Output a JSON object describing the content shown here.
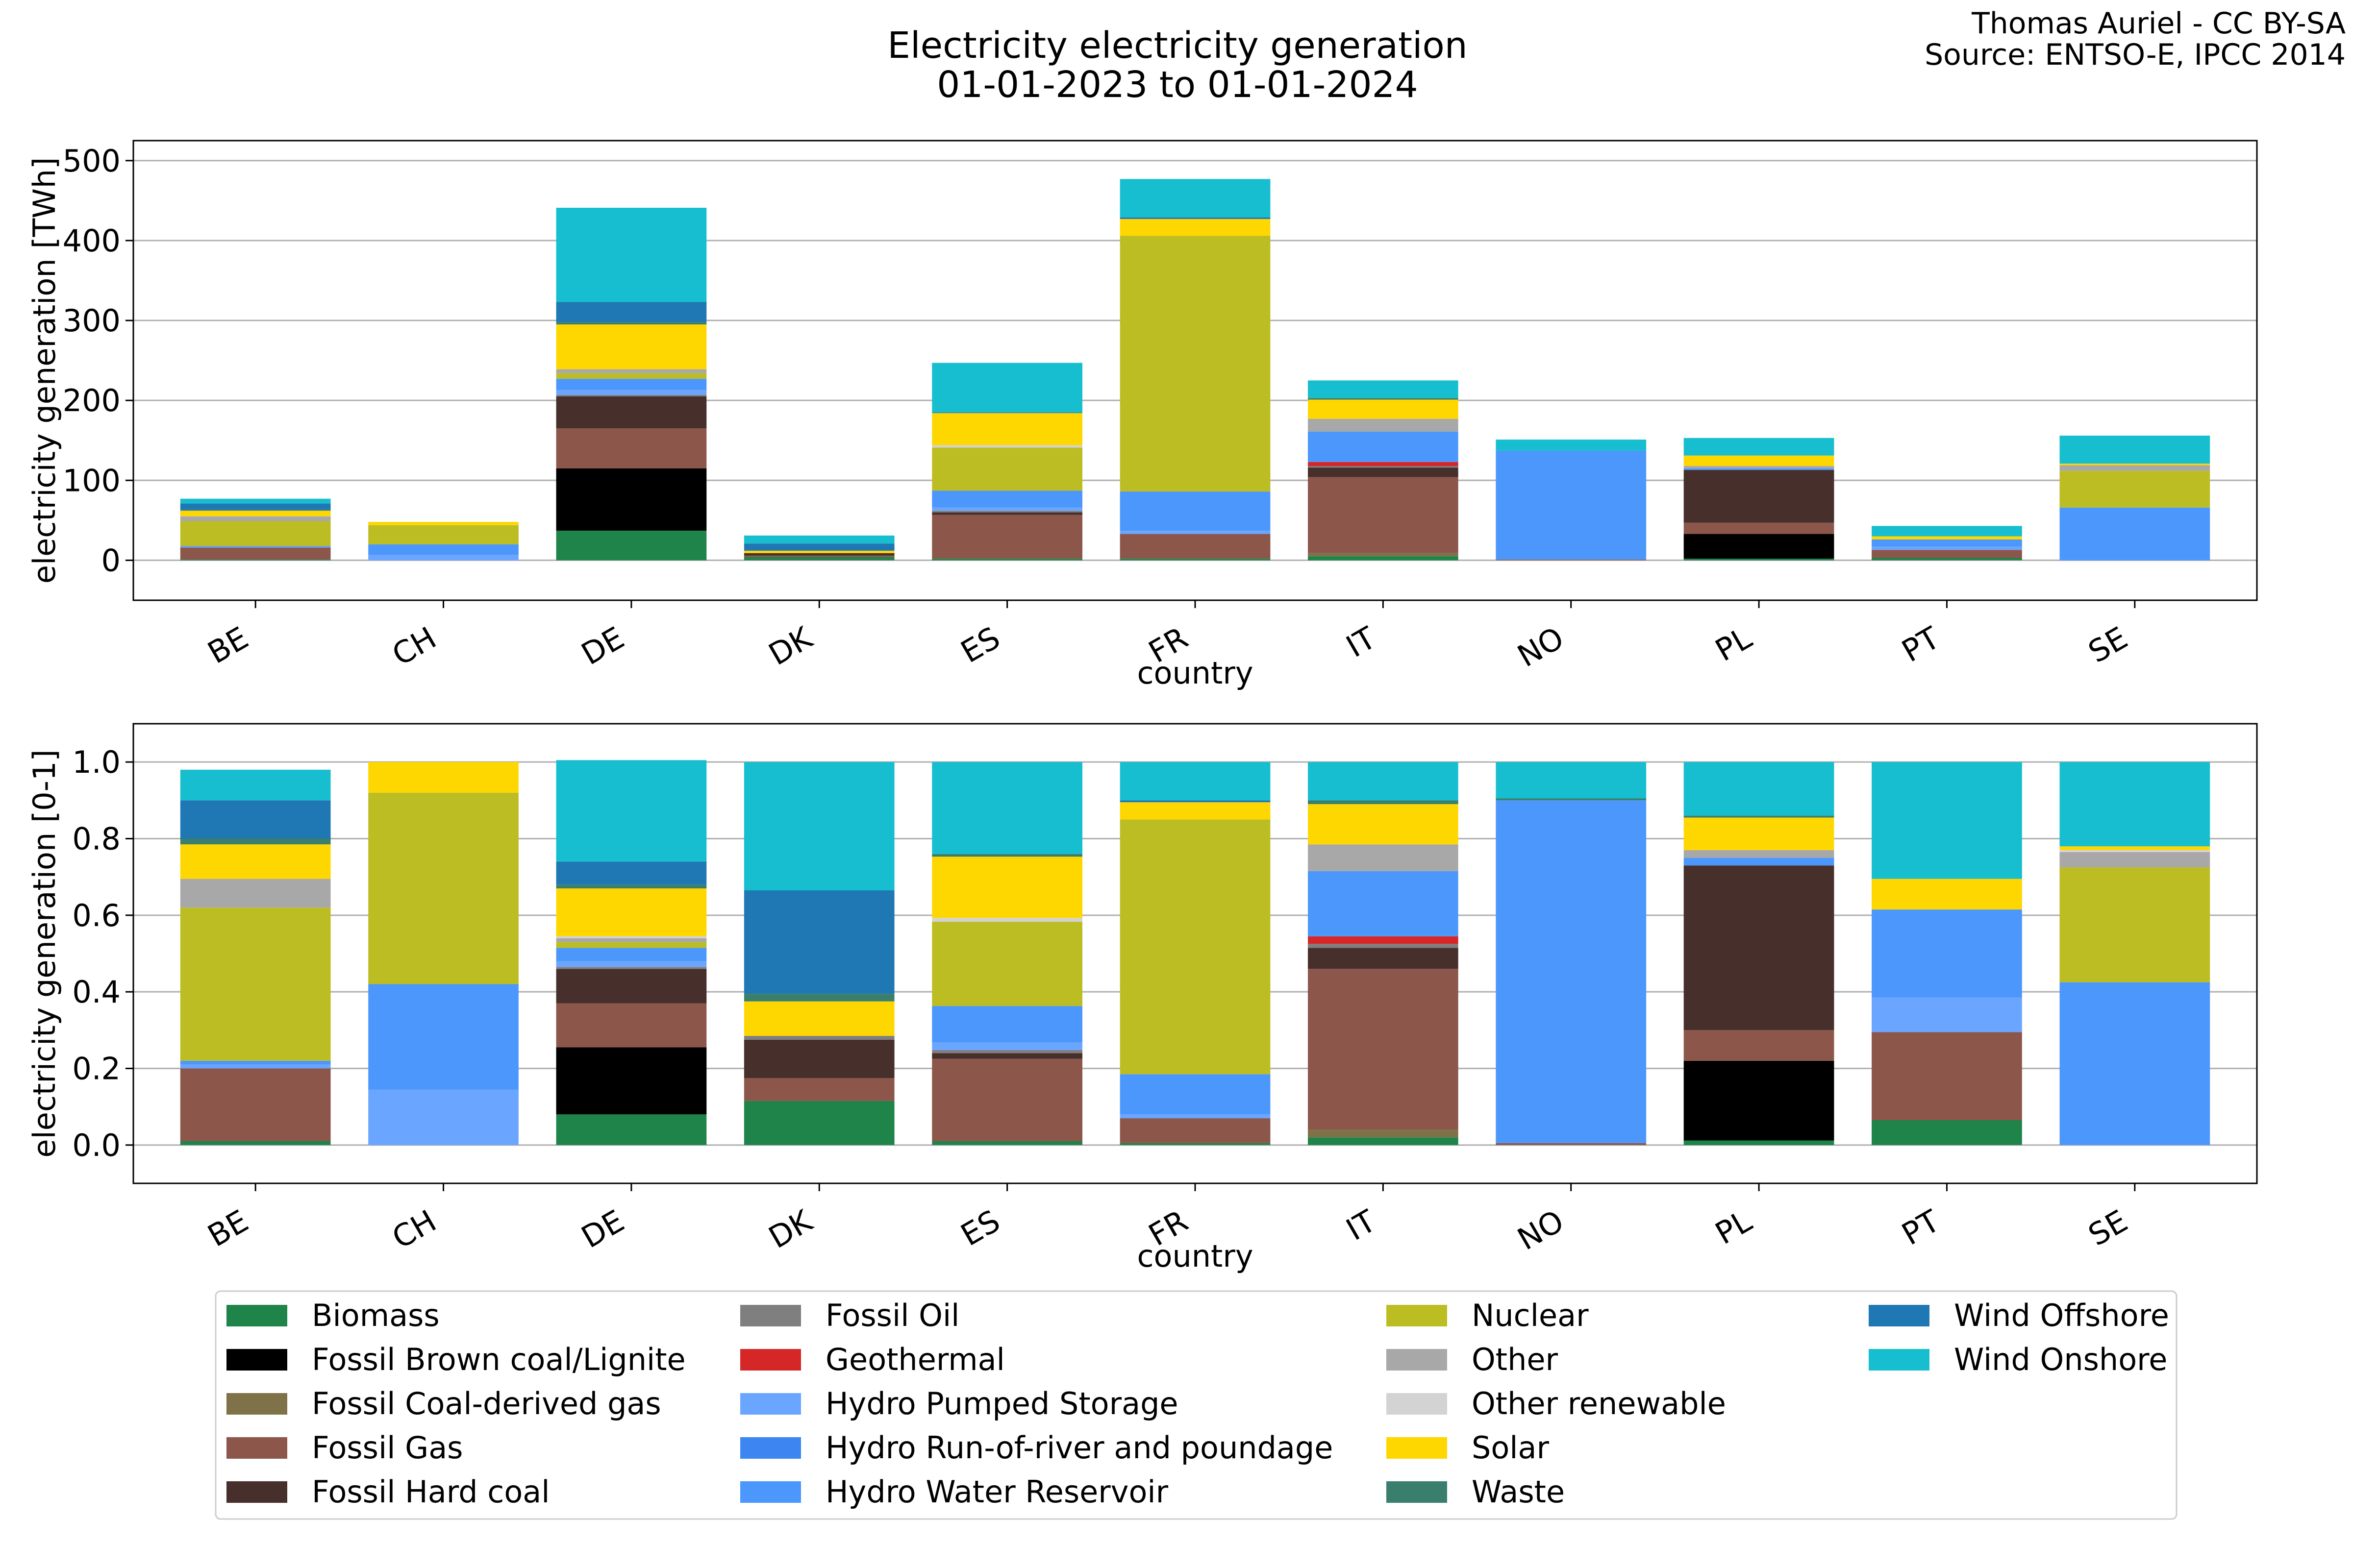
{
  "title_line1": "Electricity electricity generation",
  "title_line2": "01-01-2023 to 01-01-2024",
  "credit_line1": "Thomas Auriel - CC BY-SA",
  "credit_line2": "Source: ENTSO-E, IPCC 2014",
  "chart_data": [
    {
      "type": "bar",
      "stacked": true,
      "xlabel": "country",
      "ylabel": "electricity generation [TWh]",
      "ylim": [
        -50,
        525
      ],
      "yticks": [
        0,
        100,
        200,
        300,
        400,
        500
      ],
      "grid": true,
      "categories": [
        "BE",
        "CH",
        "DE",
        "DK",
        "ES",
        "FR",
        "IT",
        "NO",
        "PL",
        "PT",
        "SE"
      ],
      "series": [
        {
          "name": "Biomass",
          "values": [
            1,
            0,
            37,
            4,
            2,
            2,
            5,
            0,
            2,
            3,
            0
          ]
        },
        {
          "name": "Fossil Brown coal/Lignite",
          "values": [
            0,
            0,
            78,
            0,
            0,
            0,
            0,
            0,
            31,
            0,
            0
          ]
        },
        {
          "name": "Fossil Coal-derived gas",
          "values": [
            0,
            0,
            0,
            0,
            0,
            0,
            4,
            0,
            0,
            0,
            0
          ]
        },
        {
          "name": "Fossil Gas",
          "values": [
            15,
            0,
            50,
            2,
            55,
            31,
            95,
            1,
            14,
            10,
            0
          ]
        },
        {
          "name": "Fossil Hard coal",
          "values": [
            0,
            0,
            40,
            3,
            3,
            0,
            12,
            0,
            66,
            0,
            0
          ]
        },
        {
          "name": "Fossil Oil",
          "values": [
            0,
            0,
            2,
            0,
            2,
            0,
            2,
            0,
            0,
            0,
            0
          ]
        },
        {
          "name": "Geothermal",
          "values": [
            0,
            0,
            0,
            0,
            0,
            0,
            5,
            0,
            0,
            0,
            0
          ]
        },
        {
          "name": "Hydro Pumped Storage",
          "values": [
            1,
            7,
            6,
            0,
            4,
            4,
            0,
            0,
            0,
            4,
            0
          ]
        },
        {
          "name": "Hydro Run-of-river and poundage",
          "values": [
            0,
            0,
            0,
            0,
            0,
            0,
            0,
            0,
            0,
            0,
            0
          ]
        },
        {
          "name": "Hydro Water Reservoir",
          "values": [
            1,
            13,
            14,
            0,
            21,
            49,
            38,
            136,
            2,
            9,
            66
          ]
        },
        {
          "name": "Nuclear",
          "values": [
            31,
            24,
            7,
            0,
            54,
            320,
            0,
            0,
            0,
            0,
            46
          ]
        },
        {
          "name": "Other",
          "values": [
            6,
            0,
            5,
            0,
            0,
            0,
            16,
            0,
            3,
            0,
            7
          ]
        },
        {
          "name": "Other renewable",
          "values": [
            0,
            0,
            0,
            0,
            3,
            0,
            0,
            0,
            0,
            0,
            0
          ]
        },
        {
          "name": "Solar",
          "values": [
            7,
            4,
            56,
            3,
            40,
            21,
            24,
            0,
            13,
            4,
            2
          ]
        },
        {
          "name": "Waste",
          "values": [
            1,
            0,
            3,
            0,
            1,
            0,
            2,
            0,
            0,
            0,
            0
          ]
        },
        {
          "name": "Wind Offshore",
          "values": [
            8,
            0,
            25,
            9,
            0,
            2,
            0,
            0,
            0,
            0,
            0
          ]
        },
        {
          "name": "Wind Onshore",
          "values": [
            6,
            0,
            118,
            10,
            62,
            48,
            22,
            14,
            22,
            13,
            35
          ]
        }
      ]
    },
    {
      "type": "bar",
      "stacked": true,
      "xlabel": "country",
      "ylabel": "electricity generation [0-1]",
      "ylim": [
        -0.1,
        1.1
      ],
      "yticks": [
        0.0,
        0.2,
        0.4,
        0.6,
        0.8,
        1.0
      ],
      "grid": true,
      "categories": [
        "BE",
        "CH",
        "DE",
        "DK",
        "ES",
        "FR",
        "IT",
        "NO",
        "PL",
        "PT",
        "SE"
      ],
      "series": [
        {
          "name": "Biomass",
          "values": [
            0.01,
            0,
            0.08,
            0.115,
            0.01,
            0.005,
            0.02,
            0,
            0.012,
            0.065,
            0
          ]
        },
        {
          "name": "Fossil Brown coal/Lignite",
          "values": [
            0,
            0,
            0.175,
            0,
            0,
            0,
            0,
            0,
            0.208,
            0,
            0
          ]
        },
        {
          "name": "Fossil Coal-derived gas",
          "values": [
            0,
            0,
            0,
            0,
            0,
            0,
            0.02,
            0,
            0,
            0,
            0
          ]
        },
        {
          "name": "Fossil Gas",
          "values": [
            0.19,
            0,
            0.115,
            0.06,
            0.215,
            0.065,
            0.42,
            0.005,
            0.08,
            0.23,
            0
          ]
        },
        {
          "name": "Fossil Hard coal",
          "values": [
            0,
            0,
            0.09,
            0.1,
            0.015,
            0,
            0.055,
            0,
            0.43,
            0,
            0
          ]
        },
        {
          "name": "Fossil Oil",
          "values": [
            0,
            0,
            0.005,
            0.01,
            0.008,
            0,
            0.01,
            0,
            0,
            0,
            0
          ]
        },
        {
          "name": "Geothermal",
          "values": [
            0,
            0,
            0,
            0,
            0,
            0,
            0.02,
            0,
            0,
            0,
            0
          ]
        },
        {
          "name": "Hydro Pumped Storage",
          "values": [
            0.01,
            0.145,
            0.015,
            0,
            0.02,
            0.01,
            0,
            0,
            0,
            0.09,
            0
          ]
        },
        {
          "name": "Hydro Run-of-river and poundage",
          "values": [
            0,
            0,
            0,
            0,
            0,
            0,
            0,
            0,
            0,
            0,
            0
          ]
        },
        {
          "name": "Hydro Water Reservoir",
          "values": [
            0.01,
            0.275,
            0.035,
            0,
            0.095,
            0.105,
            0.17,
            0.895,
            0.02,
            0.23,
            0.425
          ]
        },
        {
          "name": "Nuclear",
          "values": [
            0.4,
            0.5,
            0.015,
            0,
            0.22,
            0.665,
            0,
            0,
            0,
            0,
            0.3
          ]
        },
        {
          "name": "Other",
          "values": [
            0.075,
            0,
            0.01,
            0,
            0,
            0,
            0.07,
            0,
            0.02,
            0,
            0.04
          ]
        },
        {
          "name": "Other renewable",
          "values": [
            0,
            0,
            0.005,
            0,
            0.01,
            0,
            0,
            0,
            0,
            0,
            0.005
          ]
        },
        {
          "name": "Solar",
          "values": [
            0.09,
            0.08,
            0.125,
            0.09,
            0.16,
            0.045,
            0.105,
            0,
            0.085,
            0.08,
            0.01
          ]
        },
        {
          "name": "Waste",
          "values": [
            0.015,
            0,
            0.01,
            0.02,
            0.007,
            0,
            0.01,
            0.005,
            0.005,
            0,
            0
          ]
        },
        {
          "name": "Wind Offshore",
          "values": [
            0.1,
            0,
            0.06,
            0.27,
            0,
            0.005,
            0,
            0,
            0,
            0,
            0
          ]
        },
        {
          "name": "Wind Onshore",
          "values": [
            0.08,
            0,
            0.265,
            0.335,
            0.24,
            0.1,
            0.1,
            0.095,
            0.14,
            0.305,
            0.22
          ]
        }
      ]
    }
  ],
  "legend": {
    "placement": "bottom-center",
    "columns": 4,
    "entries": [
      {
        "label": "Biomass",
        "color": "#1e8449"
      },
      {
        "label": "Fossil Brown coal/Lignite",
        "color": "#000000"
      },
      {
        "label": "Fossil Coal-derived gas",
        "color": "#7f7148"
      },
      {
        "label": "Fossil Gas",
        "color": "#8c564b"
      },
      {
        "label": "Fossil Hard coal",
        "color": "#472f2b"
      },
      {
        "label": "Fossil Oil",
        "color": "#7f7f7f"
      },
      {
        "label": "Geothermal",
        "color": "#d62728"
      },
      {
        "label": "Hydro Pumped Storage",
        "color": "#6aa6ff"
      },
      {
        "label": "Hydro Run-of-river and poundage",
        "color": "#3d86f2"
      },
      {
        "label": "Hydro Water Reservoir",
        "color": "#4c97fc"
      },
      {
        "label": "Nuclear",
        "color": "#bcbd22"
      },
      {
        "label": "Other",
        "color": "#a8a8a8"
      },
      {
        "label": "Other renewable",
        "color": "#d3d3d3"
      },
      {
        "label": "Solar",
        "color": "#ffd700"
      },
      {
        "label": "Waste",
        "color": "#3a7f6d"
      },
      {
        "label": "Wind Offshore",
        "color": "#1f77b4"
      },
      {
        "label": "Wind Onshore",
        "color": "#17becf"
      }
    ]
  }
}
